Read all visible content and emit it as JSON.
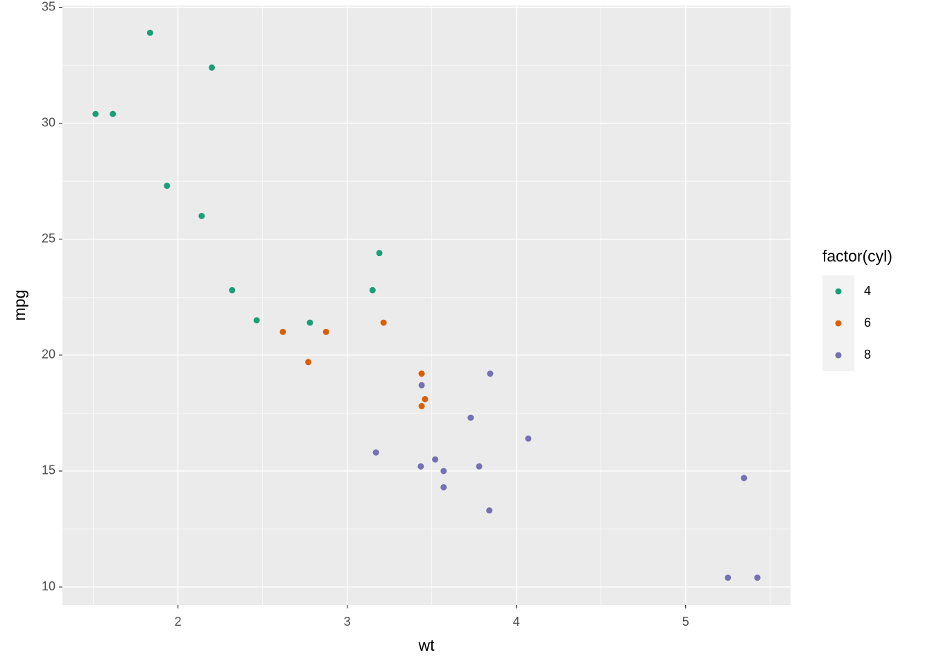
{
  "chart_data": {
    "type": "scatter",
    "x_label": "wt",
    "y_label": "mpg",
    "legend_title": "factor(cyl)",
    "legend_position": "right",
    "grid": true,
    "xlim": [
      1.317,
      5.62
    ],
    "ylim": [
      9.225,
      35.075
    ],
    "xticks": [
      2,
      3,
      4,
      5
    ],
    "yticks": [
      10,
      15,
      20,
      25,
      30,
      35
    ],
    "xminor": [
      1.5,
      2.5,
      3.5,
      4.5,
      5.5
    ],
    "yminor": [
      12.5,
      17.5,
      22.5,
      27.5,
      32.5
    ],
    "series": [
      {
        "name": "4",
        "color": "#1B9E77",
        "x": [
          2.32,
          3.19,
          3.15,
          2.2,
          1.615,
          1.835,
          2.465,
          1.935,
          2.14,
          1.513,
          2.78
        ],
        "values": [
          22.8,
          24.4,
          22.8,
          32.4,
          30.4,
          33.9,
          21.5,
          27.3,
          26.0,
          30.4,
          21.4
        ]
      },
      {
        "name": "6",
        "color": "#D95F02",
        "x": [
          2.62,
          2.875,
          3.215,
          3.46,
          3.44,
          3.44,
          2.77
        ],
        "values": [
          21.0,
          21.0,
          21.4,
          18.1,
          19.2,
          17.8,
          19.7
        ]
      },
      {
        "name": "8",
        "color": "#7570B3",
        "x": [
          3.44,
          3.57,
          4.07,
          3.73,
          3.78,
          5.25,
          5.424,
          5.345,
          3.52,
          3.435,
          3.84,
          3.845,
          3.17,
          3.57
        ],
        "values": [
          18.7,
          14.3,
          16.4,
          17.3,
          15.2,
          10.4,
          10.4,
          14.7,
          15.5,
          15.2,
          13.3,
          19.2,
          15.8,
          15.0
        ]
      }
    ]
  }
}
